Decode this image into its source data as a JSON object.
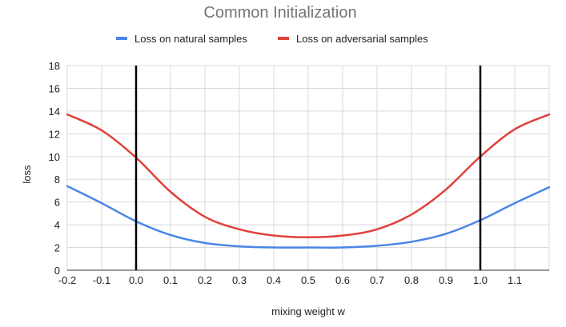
{
  "chart_data": {
    "type": "line",
    "title": "Common Initialization",
    "xlabel": "mixing weight w",
    "ylabel": "loss",
    "xlim": [
      -0.2,
      1.2
    ],
    "ylim": [
      0,
      18
    ],
    "x_ticks": [
      "-0.2",
      "-0.1",
      "0.0",
      "0.1",
      "0.2",
      "0.3",
      "0.4",
      "0.5",
      "0.6",
      "0.7",
      "0.8",
      "0.9",
      "1.0",
      "1.1"
    ],
    "y_ticks": [
      "0",
      "2",
      "4",
      "6",
      "8",
      "10",
      "12",
      "14",
      "16",
      "18"
    ],
    "grid": true,
    "legend_position": "top",
    "vertical_lines": [
      0.0,
      1.0
    ],
    "x": [
      -0.2,
      -0.1,
      0.0,
      0.1,
      0.2,
      0.3,
      0.4,
      0.5,
      0.6,
      0.7,
      0.8,
      0.9,
      1.0,
      1.1,
      1.2
    ],
    "series": [
      {
        "name": "Loss on natural samples",
        "color": "#4a86e8",
        "values": [
          7.4,
          5.9,
          4.3,
          3.1,
          2.4,
          2.1,
          2.0,
          2.0,
          2.0,
          2.15,
          2.5,
          3.2,
          4.4,
          5.9,
          7.3
        ]
      },
      {
        "name": "Loss on adversarial samples",
        "color": "#e0413a",
        "values": [
          13.7,
          12.3,
          9.9,
          6.9,
          4.7,
          3.6,
          3.05,
          2.9,
          3.05,
          3.6,
          4.9,
          7.1,
          10.0,
          12.4,
          13.7
        ]
      }
    ]
  }
}
